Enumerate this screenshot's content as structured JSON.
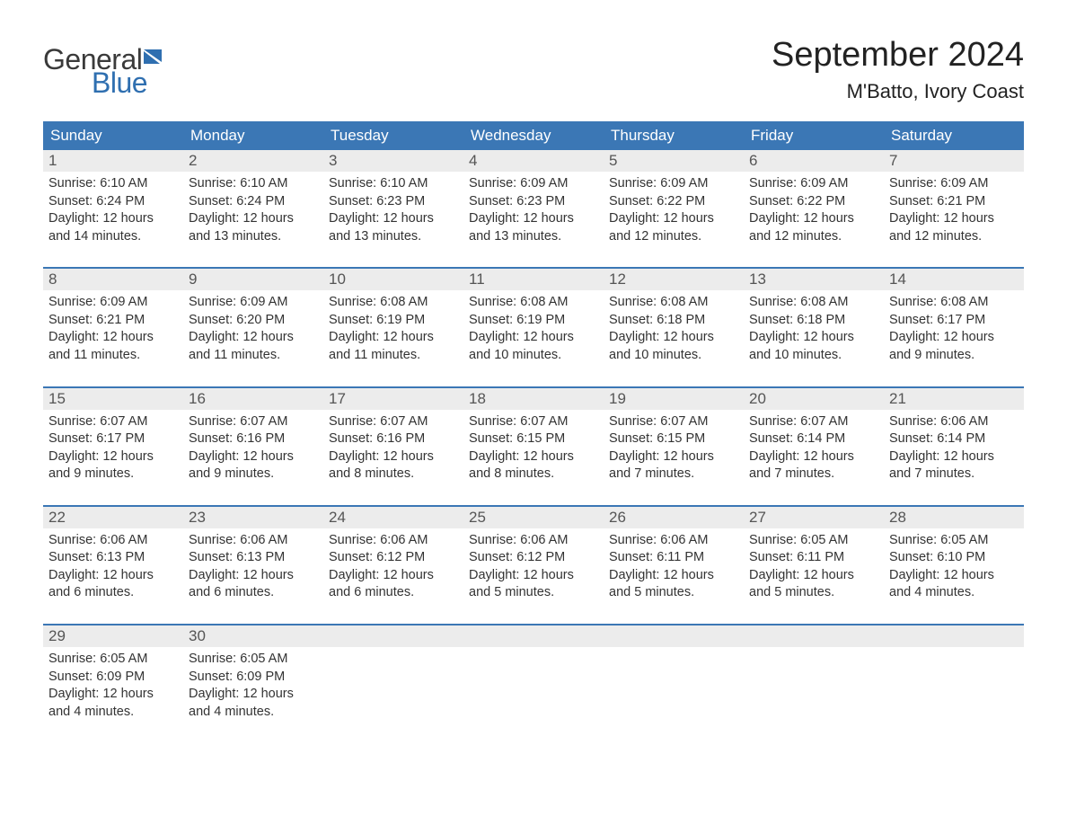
{
  "brand": {
    "line1": "General",
    "line2": "Blue"
  },
  "title": "September 2024",
  "location": "M'Batto, Ivory Coast",
  "colors": {
    "header_bg": "#3b77b5",
    "header_text": "#ffffff",
    "daynum_bg": "#ececec",
    "week_border": "#3b77b5",
    "text": "#333333",
    "logo_blue": "#2f6fb0"
  },
  "weekdays": [
    "Sunday",
    "Monday",
    "Tuesday",
    "Wednesday",
    "Thursday",
    "Friday",
    "Saturday"
  ],
  "weeks": [
    [
      {
        "n": "1",
        "sunrise": "Sunrise: 6:10 AM",
        "sunset": "Sunset: 6:24 PM",
        "dl1": "Daylight: 12 hours",
        "dl2": "and 14 minutes."
      },
      {
        "n": "2",
        "sunrise": "Sunrise: 6:10 AM",
        "sunset": "Sunset: 6:24 PM",
        "dl1": "Daylight: 12 hours",
        "dl2": "and 13 minutes."
      },
      {
        "n": "3",
        "sunrise": "Sunrise: 6:10 AM",
        "sunset": "Sunset: 6:23 PM",
        "dl1": "Daylight: 12 hours",
        "dl2": "and 13 minutes."
      },
      {
        "n": "4",
        "sunrise": "Sunrise: 6:09 AM",
        "sunset": "Sunset: 6:23 PM",
        "dl1": "Daylight: 12 hours",
        "dl2": "and 13 minutes."
      },
      {
        "n": "5",
        "sunrise": "Sunrise: 6:09 AM",
        "sunset": "Sunset: 6:22 PM",
        "dl1": "Daylight: 12 hours",
        "dl2": "and 12 minutes."
      },
      {
        "n": "6",
        "sunrise": "Sunrise: 6:09 AM",
        "sunset": "Sunset: 6:22 PM",
        "dl1": "Daylight: 12 hours",
        "dl2": "and 12 minutes."
      },
      {
        "n": "7",
        "sunrise": "Sunrise: 6:09 AM",
        "sunset": "Sunset: 6:21 PM",
        "dl1": "Daylight: 12 hours",
        "dl2": "and 12 minutes."
      }
    ],
    [
      {
        "n": "8",
        "sunrise": "Sunrise: 6:09 AM",
        "sunset": "Sunset: 6:21 PM",
        "dl1": "Daylight: 12 hours",
        "dl2": "and 11 minutes."
      },
      {
        "n": "9",
        "sunrise": "Sunrise: 6:09 AM",
        "sunset": "Sunset: 6:20 PM",
        "dl1": "Daylight: 12 hours",
        "dl2": "and 11 minutes."
      },
      {
        "n": "10",
        "sunrise": "Sunrise: 6:08 AM",
        "sunset": "Sunset: 6:19 PM",
        "dl1": "Daylight: 12 hours",
        "dl2": "and 11 minutes."
      },
      {
        "n": "11",
        "sunrise": "Sunrise: 6:08 AM",
        "sunset": "Sunset: 6:19 PM",
        "dl1": "Daylight: 12 hours",
        "dl2": "and 10 minutes."
      },
      {
        "n": "12",
        "sunrise": "Sunrise: 6:08 AM",
        "sunset": "Sunset: 6:18 PM",
        "dl1": "Daylight: 12 hours",
        "dl2": "and 10 minutes."
      },
      {
        "n": "13",
        "sunrise": "Sunrise: 6:08 AM",
        "sunset": "Sunset: 6:18 PM",
        "dl1": "Daylight: 12 hours",
        "dl2": "and 10 minutes."
      },
      {
        "n": "14",
        "sunrise": "Sunrise: 6:08 AM",
        "sunset": "Sunset: 6:17 PM",
        "dl1": "Daylight: 12 hours",
        "dl2": "and 9 minutes."
      }
    ],
    [
      {
        "n": "15",
        "sunrise": "Sunrise: 6:07 AM",
        "sunset": "Sunset: 6:17 PM",
        "dl1": "Daylight: 12 hours",
        "dl2": "and 9 minutes."
      },
      {
        "n": "16",
        "sunrise": "Sunrise: 6:07 AM",
        "sunset": "Sunset: 6:16 PM",
        "dl1": "Daylight: 12 hours",
        "dl2": "and 9 minutes."
      },
      {
        "n": "17",
        "sunrise": "Sunrise: 6:07 AM",
        "sunset": "Sunset: 6:16 PM",
        "dl1": "Daylight: 12 hours",
        "dl2": "and 8 minutes."
      },
      {
        "n": "18",
        "sunrise": "Sunrise: 6:07 AM",
        "sunset": "Sunset: 6:15 PM",
        "dl1": "Daylight: 12 hours",
        "dl2": "and 8 minutes."
      },
      {
        "n": "19",
        "sunrise": "Sunrise: 6:07 AM",
        "sunset": "Sunset: 6:15 PM",
        "dl1": "Daylight: 12 hours",
        "dl2": "and 7 minutes."
      },
      {
        "n": "20",
        "sunrise": "Sunrise: 6:07 AM",
        "sunset": "Sunset: 6:14 PM",
        "dl1": "Daylight: 12 hours",
        "dl2": "and 7 minutes."
      },
      {
        "n": "21",
        "sunrise": "Sunrise: 6:06 AM",
        "sunset": "Sunset: 6:14 PM",
        "dl1": "Daylight: 12 hours",
        "dl2": "and 7 minutes."
      }
    ],
    [
      {
        "n": "22",
        "sunrise": "Sunrise: 6:06 AM",
        "sunset": "Sunset: 6:13 PM",
        "dl1": "Daylight: 12 hours",
        "dl2": "and 6 minutes."
      },
      {
        "n": "23",
        "sunrise": "Sunrise: 6:06 AM",
        "sunset": "Sunset: 6:13 PM",
        "dl1": "Daylight: 12 hours",
        "dl2": "and 6 minutes."
      },
      {
        "n": "24",
        "sunrise": "Sunrise: 6:06 AM",
        "sunset": "Sunset: 6:12 PM",
        "dl1": "Daylight: 12 hours",
        "dl2": "and 6 minutes."
      },
      {
        "n": "25",
        "sunrise": "Sunrise: 6:06 AM",
        "sunset": "Sunset: 6:12 PM",
        "dl1": "Daylight: 12 hours",
        "dl2": "and 5 minutes."
      },
      {
        "n": "26",
        "sunrise": "Sunrise: 6:06 AM",
        "sunset": "Sunset: 6:11 PM",
        "dl1": "Daylight: 12 hours",
        "dl2": "and 5 minutes."
      },
      {
        "n": "27",
        "sunrise": "Sunrise: 6:05 AM",
        "sunset": "Sunset: 6:11 PM",
        "dl1": "Daylight: 12 hours",
        "dl2": "and 5 minutes."
      },
      {
        "n": "28",
        "sunrise": "Sunrise: 6:05 AM",
        "sunset": "Sunset: 6:10 PM",
        "dl1": "Daylight: 12 hours",
        "dl2": "and 4 minutes."
      }
    ],
    [
      {
        "n": "29",
        "sunrise": "Sunrise: 6:05 AM",
        "sunset": "Sunset: 6:09 PM",
        "dl1": "Daylight: 12 hours",
        "dl2": "and 4 minutes."
      },
      {
        "n": "30",
        "sunrise": "Sunrise: 6:05 AM",
        "sunset": "Sunset: 6:09 PM",
        "dl1": "Daylight: 12 hours",
        "dl2": "and 4 minutes."
      },
      {
        "n": "",
        "empty": true
      },
      {
        "n": "",
        "empty": true
      },
      {
        "n": "",
        "empty": true
      },
      {
        "n": "",
        "empty": true
      },
      {
        "n": "",
        "empty": true
      }
    ]
  ]
}
